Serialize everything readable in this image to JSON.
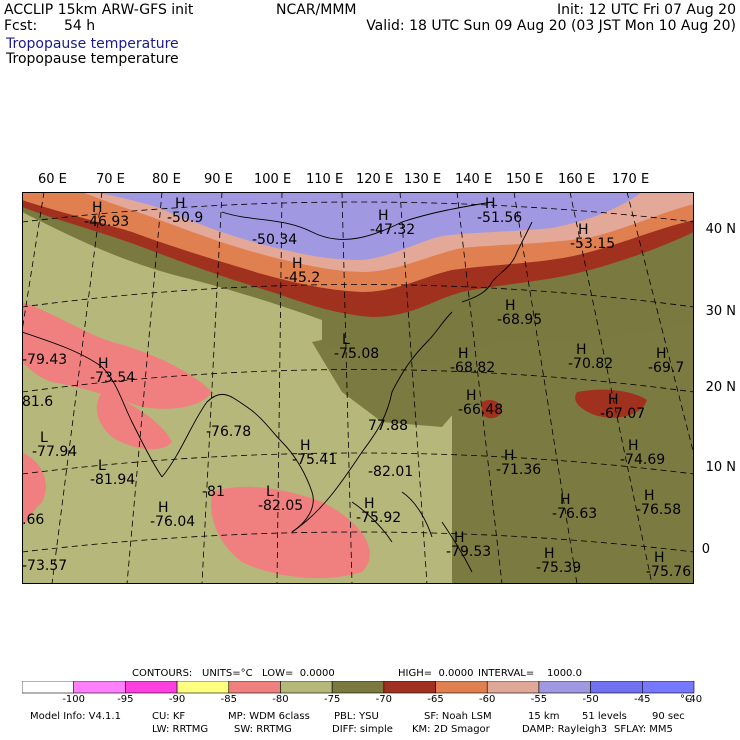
{
  "header": {
    "model": "ACCLIP 15km ARW-GFS init",
    "org": "NCAR/MMM",
    "init": "Init: 12 UTC Fri 07 Aug 20",
    "fcst_label": "Fcst:",
    "fcst_value": "54 h",
    "valid": "Valid: 18 UTC Sun 09 Aug 20 (03 JST Mon 10 Aug 20)",
    "field_blue": "Tropopause temperature",
    "field_black": "Tropopause temperature"
  },
  "map": {
    "lon_labels": [
      "60 E",
      "70 E",
      "80 E",
      "90 E",
      "100 E",
      "110 E",
      "120 E",
      "130 E",
      "140 E",
      "150 E",
      "160 E",
      "170 E"
    ],
    "lat_labels": [
      "40 N",
      "30 N",
      "20 N",
      "10 N",
      "0"
    ],
    "annotations": [
      {
        "mark": "H",
        "value": "-46.93"
      },
      {
        "mark": "H",
        "value": "-50.9"
      },
      {
        "mark": "",
        "value": "-50.34"
      },
      {
        "mark": "H",
        "value": "-47.32"
      },
      {
        "mark": "H",
        "value": "-51.56"
      },
      {
        "mark": "H",
        "value": "-53.15"
      },
      {
        "mark": "H",
        "value": "-45.2"
      },
      {
        "mark": "H",
        "value": "-68.95"
      },
      {
        "mark": "L",
        "value": "-75.08"
      },
      {
        "mark": "",
        "value": "-79.43"
      },
      {
        "mark": "H",
        "value": "-73.54"
      },
      {
        "mark": "",
        "value": "81.6"
      },
      {
        "mark": "H",
        "value": "-68.82"
      },
      {
        "mark": "H",
        "value": "-70.82"
      },
      {
        "mark": "H",
        "value": "-69.7"
      },
      {
        "mark": "",
        "value": "-76.78"
      },
      {
        "mark": "",
        "value": "77.88"
      },
      {
        "mark": "H",
        "value": "-66.48"
      },
      {
        "mark": "H",
        "value": "-67.07"
      },
      {
        "mark": "L",
        "value": "-77.94"
      },
      {
        "mark": "H",
        "value": "-75.41"
      },
      {
        "mark": "",
        "value": "-82.01"
      },
      {
        "mark": "L",
        "value": "-81.94"
      },
      {
        "mark": "",
        "value": "-81"
      },
      {
        "mark": "H",
        "value": "-71.36"
      },
      {
        "mark": "H",
        "value": "-74.69"
      },
      {
        "mark": "",
        "value": ".66"
      },
      {
        "mark": "H",
        "value": "-76.04"
      },
      {
        "mark": "L",
        "value": "-82.05"
      },
      {
        "mark": "H",
        "value": "-75.92"
      },
      {
        "mark": "H",
        "value": "-76.63"
      },
      {
        "mark": "H",
        "value": "-76.58"
      },
      {
        "mark": "",
        "value": "-73.57"
      },
      {
        "mark": "H",
        "value": "-79.53"
      },
      {
        "mark": "H",
        "value": "-75.39"
      },
      {
        "mark": "H",
        "value": "-75.76"
      }
    ]
  },
  "contours": {
    "title": "CONTOURS:",
    "units": "UNITS=°C",
    "low": "LOW=  0.0000",
    "high": "HIGH=  0.0000",
    "interval": "INTERVAL=    1000.0"
  },
  "colorbar": {
    "ticks": [
      "-100",
      "-95",
      "-90",
      "-85",
      "-80",
      "-75",
      "-70",
      "-65",
      "-60",
      "-55",
      "-50",
      "-45",
      "-40"
    ],
    "unit": "°C",
    "colors": [
      "#ffffff",
      "#ff80ff",
      "#ff40e0",
      "#ffff80",
      "#f08080",
      "#b4b878",
      "#7a7a40",
      "#a03020",
      "#e08050",
      "#e0a898",
      "#a098e0",
      "#7070f0",
      "#7878ff"
    ]
  },
  "footer": {
    "line1": [
      "Model Info: V4.1.1",
      "CU: KF",
      "MP: WDM 6class",
      "PBL: YSU",
      "SF: Noah LSM",
      "15 km",
      "51 levels",
      "90 sec"
    ],
    "line2": [
      "LW: RRTMG",
      "SW: RRTMG",
      "DIFF: simple",
      "KM: 2D Smagor",
      "DAMP: Rayleigh3",
      "SFLAY: MM5"
    ]
  }
}
